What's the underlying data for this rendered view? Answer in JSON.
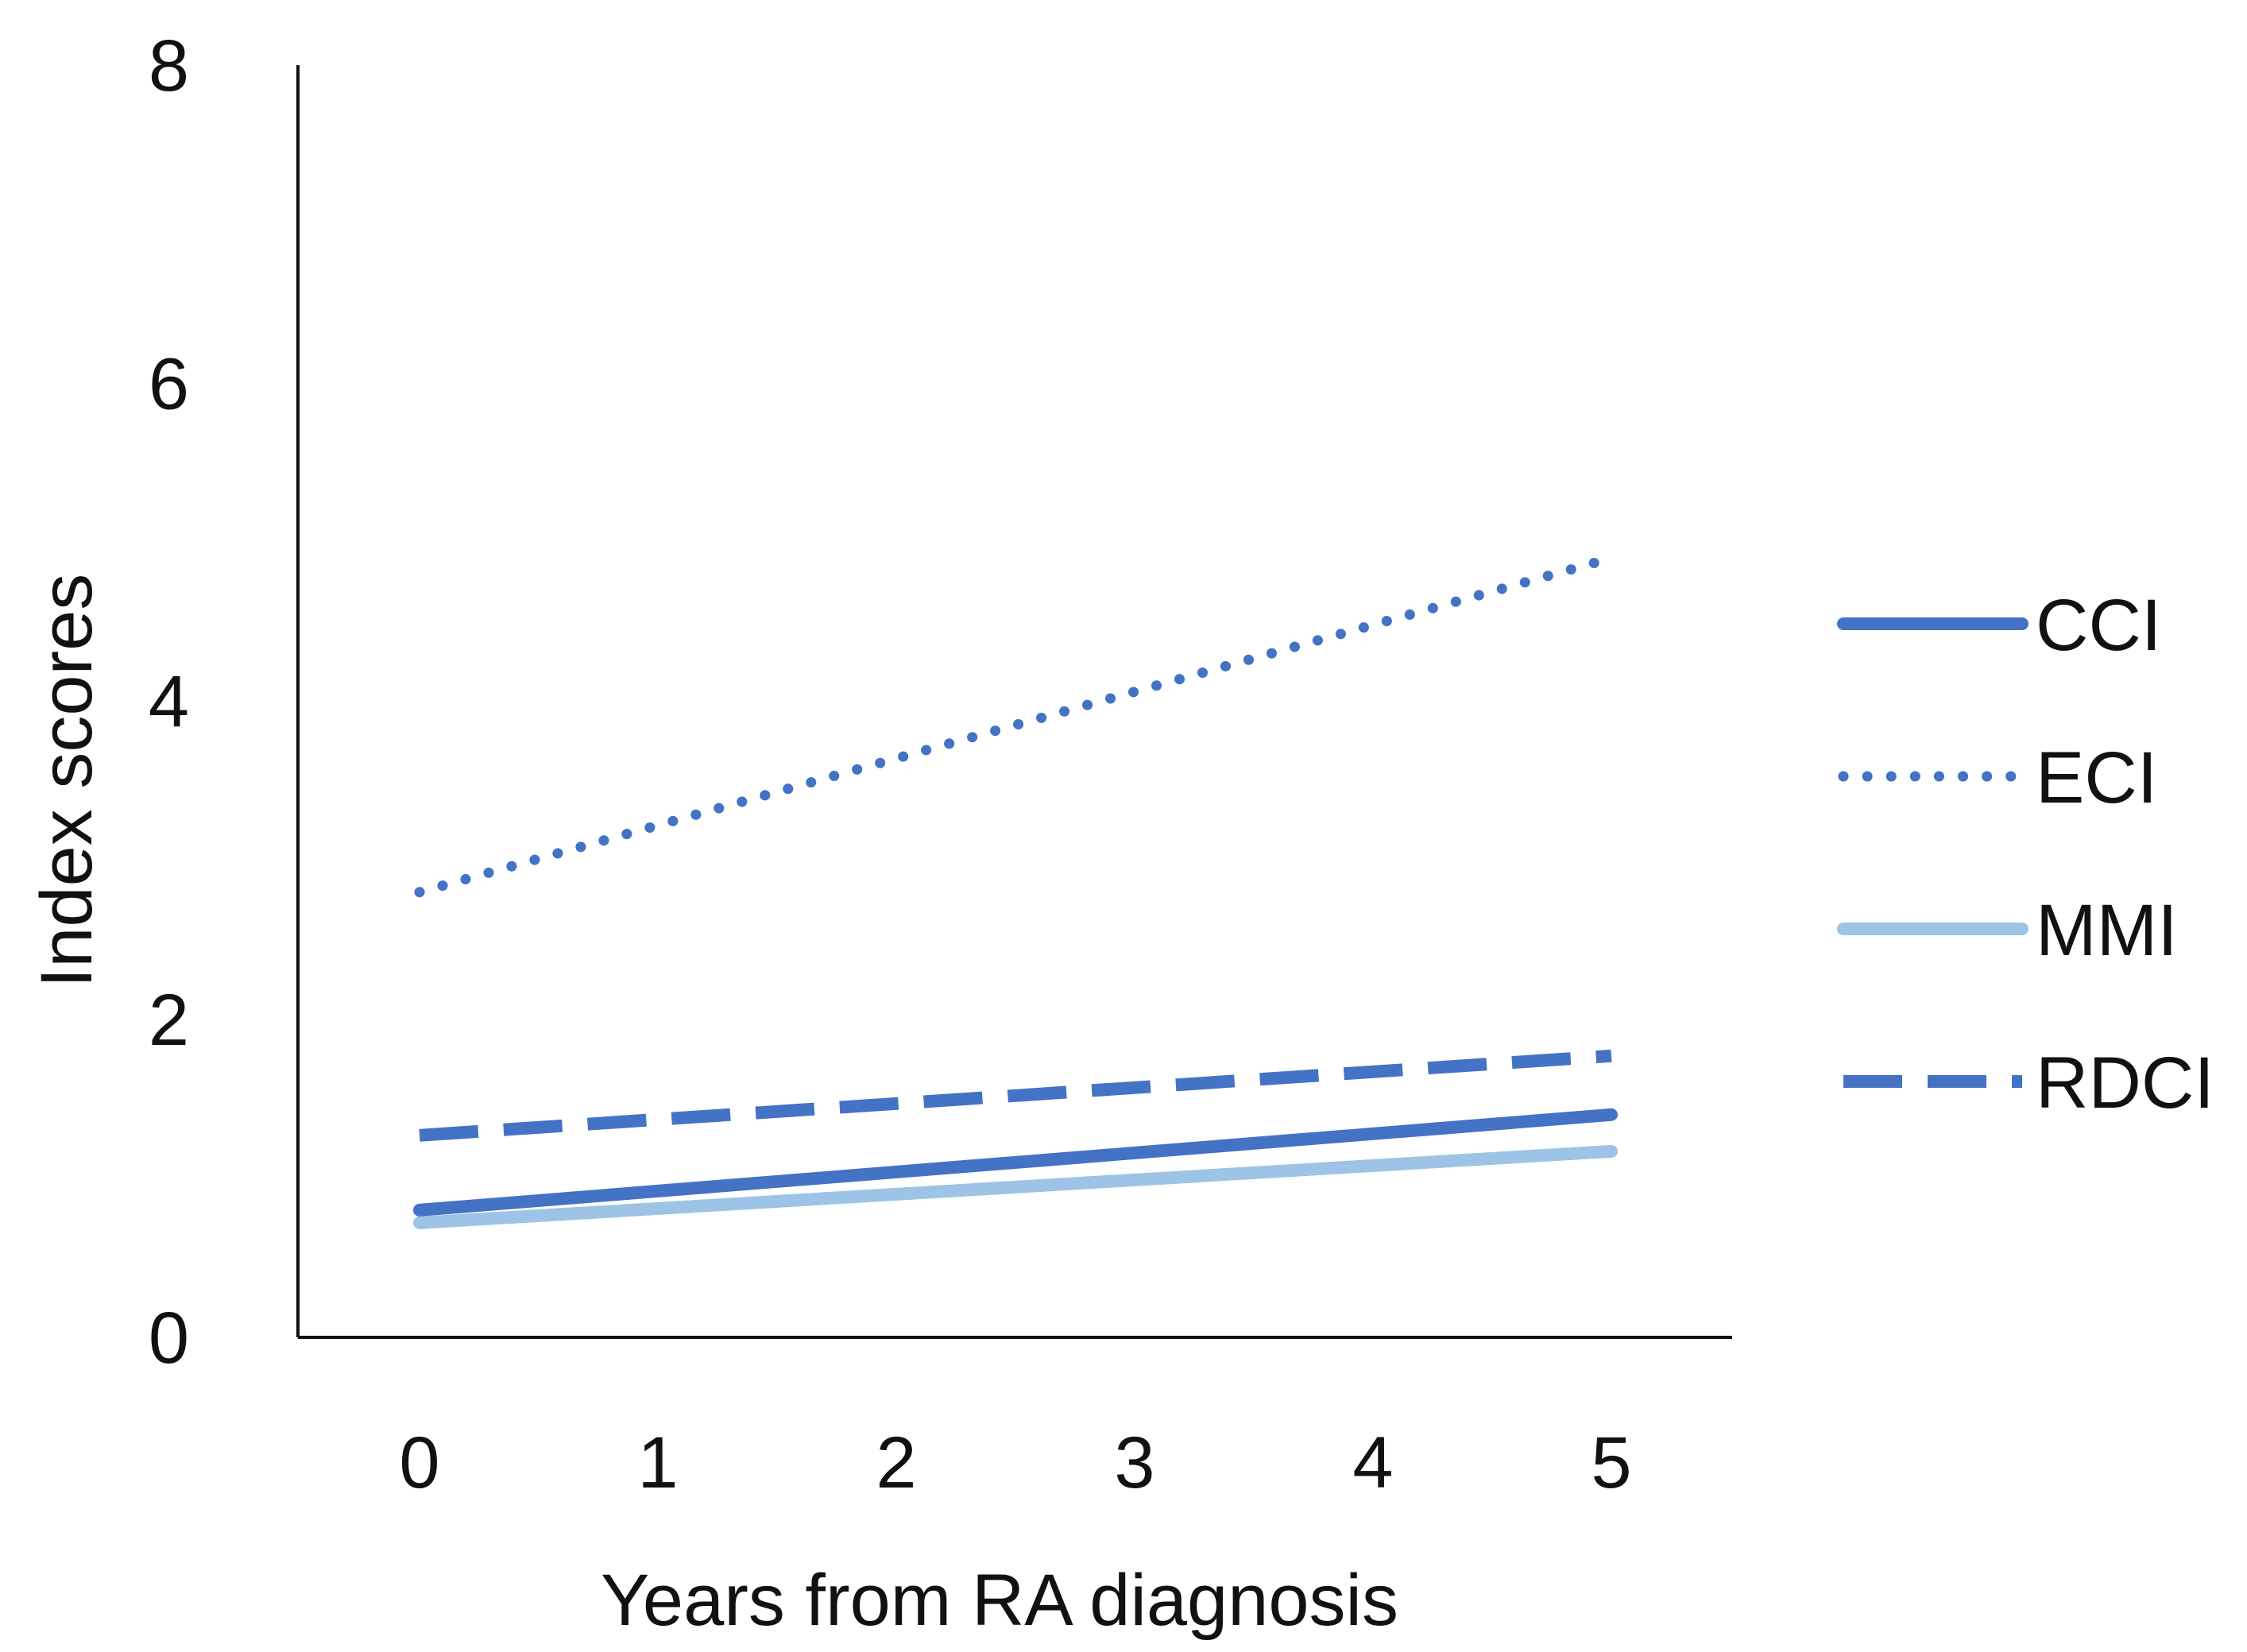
{
  "chart_data": {
    "type": "line",
    "title": "",
    "xlabel": "Years from RA diagnosis",
    "ylabel": "Index scores",
    "x": [
      0,
      1,
      2,
      3,
      4,
      5
    ],
    "x_tick_labels": [
      "0",
      "1",
      "2",
      "3",
      "4",
      "5"
    ],
    "y_ticks": [
      0,
      2,
      4,
      6,
      8
    ],
    "y_tick_labels": [
      "0",
      "2",
      "4",
      "6",
      "8"
    ],
    "ylim": [
      0,
      8
    ],
    "grid": false,
    "legend_position": "right",
    "series": [
      {
        "name": "CCI",
        "style": "solid",
        "color": "#4472C4",
        "values": [
          0.8,
          0.92,
          1.04,
          1.16,
          1.28,
          1.4
        ]
      },
      {
        "name": "ECI",
        "style": "dotted",
        "color": "#4472C4",
        "values": [
          2.8,
          3.22,
          3.64,
          4.06,
          4.48,
          4.9
        ]
      },
      {
        "name": "MMI",
        "style": "solid",
        "color": "#9DC3E6",
        "values": [
          0.72,
          0.81,
          0.9,
          0.99,
          1.08,
          1.17
        ]
      },
      {
        "name": "RDCI",
        "style": "dashed",
        "color": "#4472C4",
        "values": [
          1.27,
          1.37,
          1.47,
          1.57,
          1.67,
          1.77
        ]
      }
    ]
  }
}
